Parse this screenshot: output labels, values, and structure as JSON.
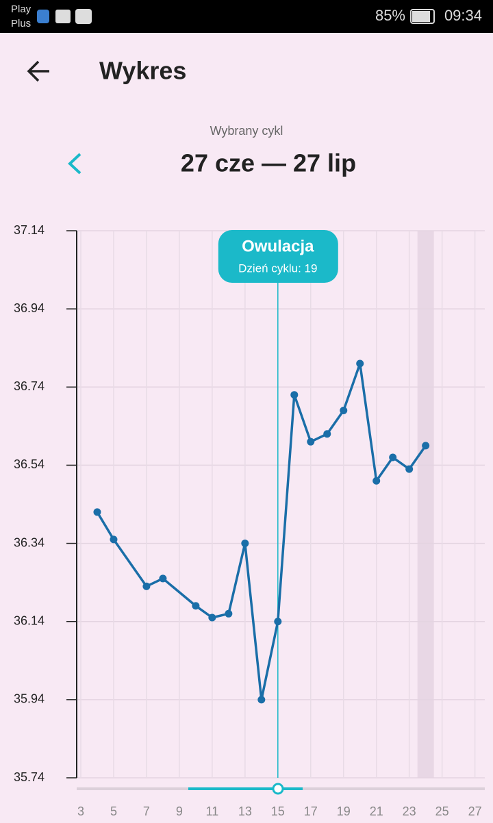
{
  "status_bar": {
    "carrier_line1": "Play",
    "carrier_line2": "Plus",
    "battery": "85%",
    "time": "09:34"
  },
  "header": {
    "title": "Wykres"
  },
  "cycle": {
    "label": "Wybrany cykl",
    "range": "27 cze — 27 lip"
  },
  "chart_data": {
    "type": "line",
    "x": [
      4,
      5,
      7,
      8,
      10,
      11,
      12,
      13,
      14,
      15,
      16,
      17,
      18,
      19,
      20,
      21,
      22,
      23,
      24
    ],
    "series": [
      {
        "color": "#1a6ea8",
        "values": [
          36.42,
          36.35,
          36.23,
          36.25,
          36.18,
          36.15,
          36.16,
          36.34,
          35.94,
          36.14,
          36.72,
          36.6,
          36.62,
          36.68,
          36.8,
          36.5,
          36.56,
          36.53,
          36.59
        ]
      }
    ],
    "xlim": [
      2.75,
      27.6
    ],
    "xticks": [
      3,
      5,
      7,
      9,
      11,
      13,
      15,
      17,
      19,
      21,
      23,
      25,
      27
    ],
    "ylim": [
      35.74,
      37.14
    ],
    "yticks": [
      35.74,
      35.94,
      36.14,
      36.34,
      36.54,
      36.74,
      36.94,
      37.14
    ],
    "grid": true,
    "ovulation": {
      "x": 15,
      "title": "Owulacja",
      "subtitle": "Dzień cyklu: 19",
      "color": "#1bb9c9"
    },
    "highlight_x": 24
  }
}
